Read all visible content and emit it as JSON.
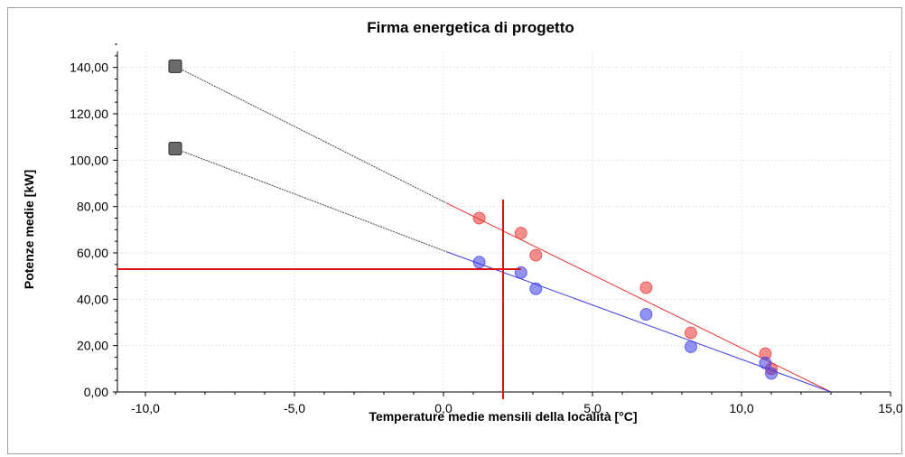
{
  "chart_data": {
    "type": "scatter",
    "title": "Firma energetica di progetto",
    "xlabel": "Temperature medie mensili della località [°C]",
    "ylabel": "Potenze medie [kW]",
    "xlim": [
      -11,
      15
    ],
    "ylim": [
      0,
      150
    ],
    "x_ticks": [
      -10,
      -5,
      0,
      5,
      10,
      15
    ],
    "x_tick_labels": [
      "-10,0",
      "-5,0",
      "0,0",
      "5,0",
      "10,0",
      "15,0"
    ],
    "y_ticks": [
      0,
      20,
      40,
      60,
      80,
      100,
      120,
      140
    ],
    "y_tick_labels": [
      "0,00",
      "20,00",
      "40,00",
      "60,00",
      "80,00",
      "100,00",
      "120,00",
      "140,00"
    ],
    "grid": true,
    "series": [
      {
        "color": "#e83232",
        "marker": "circle",
        "points": [
          [
            1.2,
            75
          ],
          [
            2.6,
            68.5
          ],
          [
            3.1,
            59
          ],
          [
            6.8,
            45
          ],
          [
            8.3,
            25.5
          ],
          [
            10.8,
            16.5
          ],
          [
            11.0,
            10
          ]
        ]
      },
      {
        "color": "#3a3ae8",
        "marker": "circle",
        "points": [
          [
            1.2,
            56
          ],
          [
            2.6,
            51.5
          ],
          [
            3.1,
            44.5
          ],
          [
            6.8,
            33.5
          ],
          [
            8.3,
            19.5
          ],
          [
            10.8,
            12.5
          ],
          [
            11.0,
            8
          ]
        ]
      }
    ],
    "fit_lines": [
      {
        "color": "#e83232",
        "from": [
          0.1,
          81.5
        ],
        "to": [
          13.0,
          0
        ],
        "extrapolated_to": [
          -9.0,
          140.5
        ]
      },
      {
        "color": "#3a3ae8",
        "from": [
          0.1,
          60.5
        ],
        "to": [
          13.0,
          0
        ],
        "extrapolated_to": [
          -9.0,
          105
        ]
      }
    ],
    "design_points": [
      [
        -9.0,
        140.5
      ],
      [
        -9.0,
        105
      ]
    ],
    "reference_lines": {
      "color": "#e01010",
      "x": 2.0,
      "y": 53
    }
  }
}
